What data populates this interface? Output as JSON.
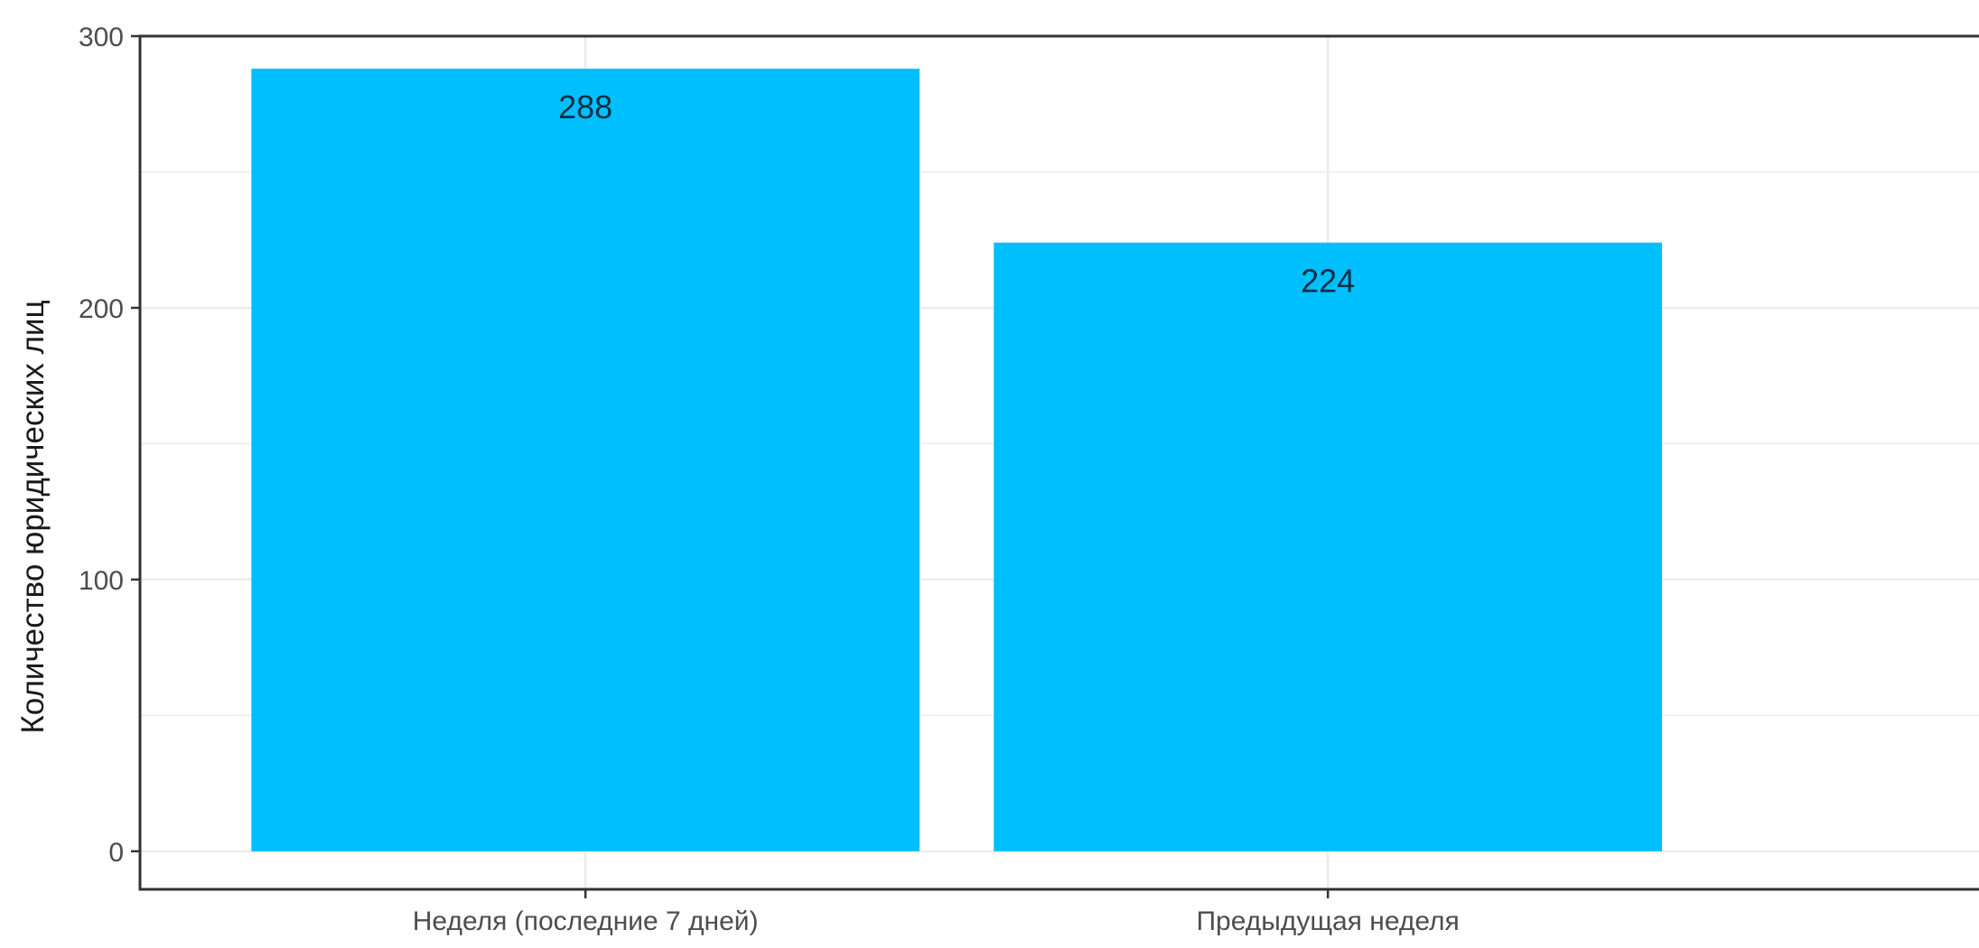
{
  "chart_data": {
    "type": "bar",
    "categories": [
      "Неделя (последние 7 дней)",
      "Предыдущая неделя"
    ],
    "values": [
      288,
      224
    ],
    "data_labels": [
      "288",
      "224"
    ],
    "title": "",
    "xlabel": "",
    "ylabel": "Количество юридических лиц",
    "ylim": [
      -14,
      300
    ],
    "yticks": [
      0,
      100,
      200,
      300
    ],
    "ytick_labels": [
      "0",
      "100",
      "200",
      "300"
    ],
    "grid": true,
    "legend": "none",
    "bar_color": "#00bfff",
    "panel_background": "#ffffff",
    "grid_color": "#ebebeb",
    "border_color": "#333333"
  }
}
